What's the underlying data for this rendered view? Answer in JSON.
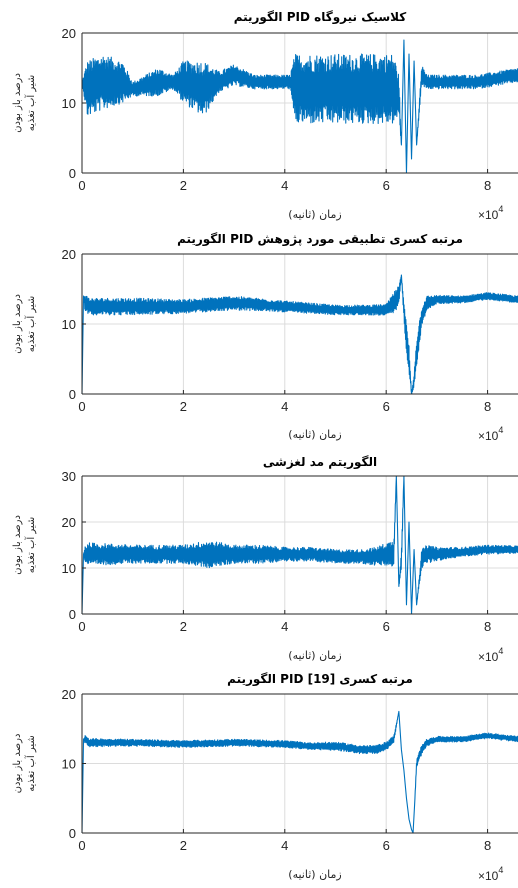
{
  "chart_data": [
    {
      "type": "line",
      "title": "الگوریتم PID کلاسیک نیروگاه",
      "xlabel": "زمان (ثانیه)",
      "ylabel": [
        "درصد باز بودن",
        "شیر آب تغذیه"
      ],
      "x_exponent": "×10",
      "x_exponent_power": "4",
      "xlim": [
        0,
        86000
      ],
      "ylim": [
        0,
        20
      ],
      "xticks": [
        0,
        20000,
        40000,
        60000,
        80000
      ],
      "xtick_labels": [
        "0",
        "2",
        "4",
        "6",
        "8"
      ],
      "yticks": [
        0,
        10,
        20
      ],
      "ytick_labels": [
        "0",
        "10",
        "20"
      ],
      "grid": true,
      "color": "#0072bd",
      "series": [
        {
          "x": [
            0,
            1000,
            4000,
            8000,
            10000,
            15000,
            18000,
            20000,
            24000,
            27000,
            30000,
            34000,
            38000,
            41000,
            42000,
            46000,
            50000,
            55000,
            58000,
            60000,
            61500,
            62500,
            63000,
            63500,
            64000,
            64500,
            65000,
            65500,
            66000,
            67000,
            68000,
            70000,
            74000,
            78000,
            82000,
            86000
          ],
          "y": [
            13,
            12,
            13,
            13,
            12,
            13,
            13,
            13,
            12,
            13,
            14,
            13,
            13,
            13,
            12,
            12,
            12,
            12,
            12,
            12,
            12,
            11,
            4,
            19,
            0,
            17,
            2,
            16,
            4,
            14,
            13,
            13,
            13,
            13,
            13.5,
            14
          ],
          "amp": [
            0,
            4,
            4,
            3,
            1,
            2,
            1,
            3,
            4,
            1.5,
            1.5,
            1,
            1,
            1,
            5,
            5,
            5,
            5,
            5,
            5,
            5,
            3,
            0,
            0,
            0,
            0,
            0,
            0,
            0,
            1.5,
            1,
            1,
            1,
            1,
            1,
            1
          ]
        }
      ]
    },
    {
      "type": "line",
      "title": "الگوریتم PID مرتبه کسری تطبیقی مورد پژوهش",
      "xlabel": "زمان (ثانیه)",
      "ylabel": [
        "درصد باز بودن",
        "شیر آب تغذیه"
      ],
      "x_exponent": "×10",
      "x_exponent_power": "4",
      "xlim": [
        0,
        86000
      ],
      "ylim": [
        0,
        20
      ],
      "xticks": [
        0,
        20000,
        40000,
        60000,
        80000
      ],
      "xtick_labels": [
        "0",
        "2",
        "4",
        "6",
        "8"
      ],
      "yticks": [
        0,
        10,
        20
      ],
      "ytick_labels": [
        "0",
        "10",
        "20"
      ],
      "grid": true,
      "color": "#0072bd",
      "series": [
        {
          "x": [
            0,
            300,
            600,
            1500,
            3000,
            10000,
            20000,
            30000,
            40000,
            50000,
            56000,
            60000,
            61500,
            62500,
            63000,
            63500,
            64000,
            64500,
            65000,
            65500,
            66000,
            67000,
            68000,
            70000,
            75000,
            80000,
            86000
          ],
          "y": [
            0,
            14,
            13,
            12.5,
            12.5,
            12.5,
            12.5,
            13,
            12.5,
            12,
            12,
            12,
            13,
            14,
            17,
            12,
            8,
            5,
            0,
            2,
            6,
            11,
            13,
            13.5,
            13.5,
            14,
            13.5
          ],
          "amp": [
            0,
            0,
            1.2,
            1.2,
            1.2,
            1.2,
            1,
            1,
            0.8,
            0.7,
            0.7,
            0.8,
            1.5,
            1.5,
            0,
            1.5,
            2,
            2,
            0,
            1,
            2,
            1.5,
            1,
            0.6,
            0.5,
            0.5,
            0.5
          ]
        }
      ]
    },
    {
      "type": "line",
      "title": "الگوریتم مد لغزشی",
      "xlabel": "زمان (ثانیه)",
      "ylabel": [
        "درصد باز بودن",
        "شیر آب تغذیه"
      ],
      "x_exponent": "×10",
      "x_exponent_power": "4",
      "xlim": [
        0,
        86000
      ],
      "ylim": [
        0,
        30
      ],
      "xticks": [
        0,
        20000,
        40000,
        60000,
        80000
      ],
      "xtick_labels": [
        "0",
        "2",
        "4",
        "6",
        "8"
      ],
      "yticks": [
        0,
        10,
        20,
        30
      ],
      "ytick_labels": [
        "0",
        "10",
        "20",
        "30"
      ],
      "grid": true,
      "color": "#0072bd",
      "series": [
        {
          "x": [
            0,
            300,
            600,
            1500,
            10000,
            20000,
            25000,
            30000,
            35000,
            40000,
            45000,
            50000,
            55000,
            58000,
            60000,
            61500,
            62000,
            62500,
            63000,
            63500,
            64000,
            64500,
            65000,
            65500,
            66000,
            67000,
            68000,
            70000,
            75000,
            80000,
            86000
          ],
          "y": [
            0,
            13,
            13,
            13,
            13,
            13,
            13,
            13,
            13,
            13,
            13,
            12.5,
            12.5,
            12.5,
            13,
            13,
            30,
            6,
            12,
            30,
            2,
            20,
            0,
            14,
            2,
            12,
            13,
            13,
            13.5,
            14,
            14
          ],
          "amp": [
            0,
            0,
            2,
            2.5,
            2,
            2,
            3,
            2,
            2,
            1.5,
            1.5,
            1.5,
            1.5,
            2,
            2.5,
            3,
            0,
            0,
            3,
            0,
            0,
            0,
            0,
            0,
            0,
            2,
            2,
            1.5,
            1,
            1,
            0.8
          ]
        }
      ]
    },
    {
      "type": "line",
      "title": "الگوریتم PID مرتبه کسری [19]",
      "xlabel": "زمان (ثانیه)",
      "ylabel": [
        "درصد باز بودن",
        "شیر آب تغذیه"
      ],
      "x_exponent": "×10",
      "x_exponent_power": "4",
      "xlim": [
        0,
        86000
      ],
      "ylim": [
        0,
        20
      ],
      "xticks": [
        0,
        20000,
        40000,
        60000,
        80000
      ],
      "xtick_labels": [
        "0",
        "2",
        "4",
        "6",
        "8"
      ],
      "yticks": [
        0,
        10,
        20
      ],
      "ytick_labels": [
        "0",
        "10",
        "20"
      ],
      "grid": true,
      "color": "#0072bd",
      "series": [
        {
          "x": [
            0,
            300,
            600,
            1500,
            10000,
            20000,
            30000,
            40000,
            45000,
            50000,
            55000,
            58000,
            60000,
            61500,
            62500,
            63000,
            63500,
            64000,
            64500,
            65000,
            65300,
            65600,
            66000,
            67000,
            68000,
            70000,
            75000,
            80000,
            86000
          ],
          "y": [
            0,
            13.5,
            13.5,
            13,
            13,
            12.8,
            13,
            12.8,
            12.5,
            12.5,
            12,
            12,
            12.5,
            13.5,
            17.5,
            12,
            9,
            5,
            2,
            0.5,
            0,
            4,
            10,
            12,
            13,
            13.5,
            13.5,
            14,
            13.5
          ],
          "amp": [
            0,
            0,
            0.6,
            0.6,
            0.5,
            0.5,
            0.5,
            0.5,
            0.5,
            0.6,
            0.6,
            0.6,
            0.6,
            0.5,
            0,
            0,
            0,
            0,
            0,
            0,
            0,
            0,
            0.5,
            0.8,
            0.5,
            0.4,
            0.4,
            0.4,
            0.4
          ]
        }
      ]
    }
  ]
}
